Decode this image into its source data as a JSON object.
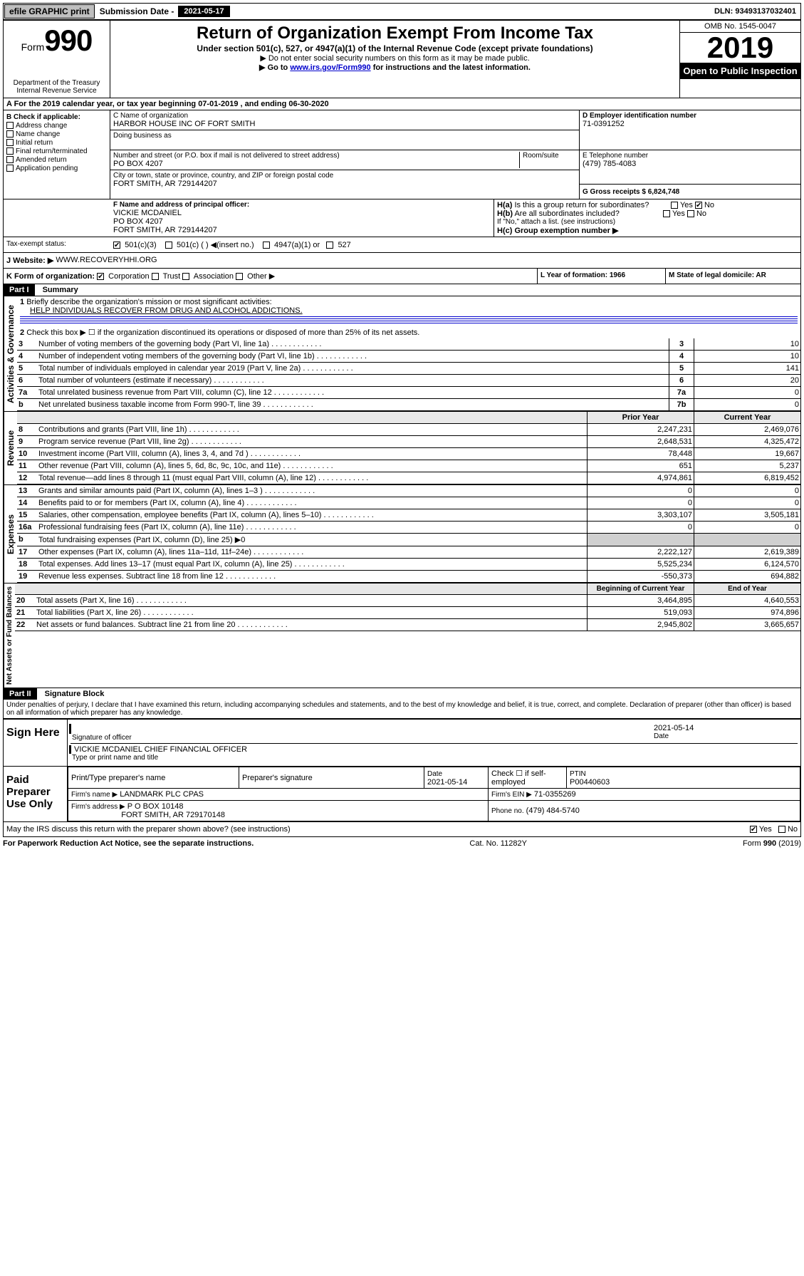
{
  "topbar": {
    "efile": "efile GRAPHIC print",
    "sub_label": "Submission Date - 2021-05-17",
    "dln": "DLN: 93493137032401"
  },
  "header": {
    "form_prefix": "Form",
    "form_num": "990",
    "dept": "Department of the Treasury",
    "irs": "Internal Revenue Service",
    "title": "Return of Organization Exempt From Income Tax",
    "sub1": "Under section 501(c), 527, or 4947(a)(1) of the Internal Revenue Code (except private foundations)",
    "sub2": "▶ Do not enter social security numbers on this form as it may be made public.",
    "sub3_pre": "▶ Go to ",
    "sub3_link": "www.irs.gov/Form990",
    "sub3_post": " for instructions and the latest information.",
    "omb": "OMB No. 1545-0047",
    "year": "2019",
    "open": "Open to Public Inspection"
  },
  "lineA": "A For the 2019 calendar year, or tax year beginning 07-01-2019   , and ending 06-30-2020",
  "sectionB": {
    "label": "B Check if applicable:",
    "items": [
      "Address change",
      "Name change",
      "Initial return",
      "Final return/terminated",
      "Amended return",
      "Application pending"
    ]
  },
  "sectionC": {
    "name_label": "C Name of organization",
    "name": "HARBOR HOUSE INC OF FORT SMITH",
    "dba_label": "Doing business as",
    "addr_label": "Number and street (or P.O. box if mail is not delivered to street address)",
    "room": "Room/suite",
    "addr": "PO BOX 4207",
    "city_label": "City or town, state or province, country, and ZIP or foreign postal code",
    "city": "FORT SMITH, AR  729144207"
  },
  "sectionD": {
    "label": "D Employer identification number",
    "val": "71-0391252"
  },
  "sectionE": {
    "label": "E Telephone number",
    "val": "(479) 785-4083"
  },
  "sectionG": {
    "label": "G Gross receipts $ 6,824,748"
  },
  "sectionF": {
    "label": "F Name and address of principal officer:",
    "name": "VICKIE MCDANIEL",
    "addr1": "PO BOX 4207",
    "addr2": "FORT SMITH, AR  729144207"
  },
  "sectionH": {
    "ha": "H(a)  Is this a group return for subordinates?",
    "hb": "H(b)  Are all subordinates included?",
    "hb_note": "If \"No,\" attach a list. (see instructions)",
    "hc": "H(c)  Group exemption number ▶"
  },
  "taxExempt": {
    "label": "Tax-exempt status:",
    "opt1": "501(c)(3)",
    "opt2": "501(c) (  ) ◀(insert no.)",
    "opt3": "4947(a)(1) or",
    "opt4": "527"
  },
  "sectionJ": {
    "label": "J   Website: ▶",
    "val": "WWW.RECOVERYHHI.ORG"
  },
  "sectionK": {
    "label": "K Form of organization:",
    "opts": [
      "Corporation",
      "Trust",
      "Association",
      "Other ▶"
    ]
  },
  "sectionL": {
    "label": "L Year of formation: 1966"
  },
  "sectionM": {
    "label": "M State of legal domicile: AR"
  },
  "part1": {
    "label": "Part I",
    "title": "Summary"
  },
  "governance_label": "Activities & Governance",
  "revenue_label": "Revenue",
  "expenses_label": "Expenses",
  "netassets_label": "Net Assets or Fund Balances",
  "line1": {
    "num": "1",
    "text": "Briefly describe the organization's mission or most significant activities:",
    "val": "HELP INDIVIDUALS RECOVER FROM DRUG AND ALCOHOL ADDICTIONS."
  },
  "line2": {
    "num": "2",
    "text": "Check this box ▶ ☐  if the organization discontinued its operations or disposed of more than 25% of its net assets."
  },
  "summary_lines": [
    {
      "num": "3",
      "text": "Number of voting members of the governing body (Part VI, line 1a)",
      "box": "3",
      "val": "10"
    },
    {
      "num": "4",
      "text": "Number of independent voting members of the governing body (Part VI, line 1b)",
      "box": "4",
      "val": "10"
    },
    {
      "num": "5",
      "text": "Total number of individuals employed in calendar year 2019 (Part V, line 2a)",
      "box": "5",
      "val": "141"
    },
    {
      "num": "6",
      "text": "Total number of volunteers (estimate if necessary)",
      "box": "6",
      "val": "20"
    },
    {
      "num": "7a",
      "text": "Total unrelated business revenue from Part VIII, column (C), line 12",
      "box": "7a",
      "val": "0"
    },
    {
      "num": "b",
      "text": "Net unrelated business taxable income from Form 990-T, line 39",
      "box": "7b",
      "val": "0"
    }
  ],
  "col_headers": {
    "prior": "Prior Year",
    "current": "Current Year"
  },
  "revenue_lines": [
    {
      "num": "8",
      "text": "Contributions and grants (Part VIII, line 1h)",
      "p": "2,247,231",
      "c": "2,469,076"
    },
    {
      "num": "9",
      "text": "Program service revenue (Part VIII, line 2g)",
      "p": "2,648,531",
      "c": "4,325,472"
    },
    {
      "num": "10",
      "text": "Investment income (Part VIII, column (A), lines 3, 4, and 7d )",
      "p": "78,448",
      "c": "19,667"
    },
    {
      "num": "11",
      "text": "Other revenue (Part VIII, column (A), lines 5, 6d, 8c, 9c, 10c, and 11e)",
      "p": "651",
      "c": "5,237"
    },
    {
      "num": "12",
      "text": "Total revenue—add lines 8 through 11 (must equal Part VIII, column (A), line 12)",
      "p": "4,974,861",
      "c": "6,819,452"
    }
  ],
  "expense_lines": [
    {
      "num": "13",
      "text": "Grants and similar amounts paid (Part IX, column (A), lines 1–3 )",
      "p": "0",
      "c": "0"
    },
    {
      "num": "14",
      "text": "Benefits paid to or for members (Part IX, column (A), line 4)",
      "p": "0",
      "c": "0"
    },
    {
      "num": "15",
      "text": "Salaries, other compensation, employee benefits (Part IX, column (A), lines 5–10)",
      "p": "3,303,107",
      "c": "3,505,181"
    },
    {
      "num": "16a",
      "text": "Professional fundraising fees (Part IX, column (A), line 11e)",
      "p": "0",
      "c": "0"
    },
    {
      "num": "b",
      "text": "Total fundraising expenses (Part IX, column (D), line 25) ▶0",
      "p": "",
      "c": "",
      "grey": true
    },
    {
      "num": "17",
      "text": "Other expenses (Part IX, column (A), lines 11a–11d, 11f–24e)",
      "p": "2,222,127",
      "c": "2,619,389"
    },
    {
      "num": "18",
      "text": "Total expenses. Add lines 13–17 (must equal Part IX, column (A), line 25)",
      "p": "5,525,234",
      "c": "6,124,570"
    },
    {
      "num": "19",
      "text": "Revenue less expenses. Subtract line 18 from line 12",
      "p": "-550,373",
      "c": "694,882"
    }
  ],
  "net_headers": {
    "begin": "Beginning of Current Year",
    "end": "End of Year"
  },
  "net_lines": [
    {
      "num": "20",
      "text": "Total assets (Part X, line 16)",
      "p": "3,464,895",
      "c": "4,640,553"
    },
    {
      "num": "21",
      "text": "Total liabilities (Part X, line 26)",
      "p": "519,093",
      "c": "974,896"
    },
    {
      "num": "22",
      "text": "Net assets or fund balances. Subtract line 21 from line 20",
      "p": "2,945,802",
      "c": "3,665,657"
    }
  ],
  "part2": {
    "label": "Part II",
    "title": "Signature Block"
  },
  "perjury": "Under penalties of perjury, I declare that I have examined this return, including accompanying schedules and statements, and to the best of my knowledge and belief, it is true, correct, and complete. Declaration of preparer (other than officer) is based on all information of which preparer has any knowledge.",
  "sign": {
    "here": "Sign Here",
    "date": "2021-05-14",
    "sig_label": "Signature of officer",
    "date_label": "Date",
    "name": "VICKIE MCDANIEL CHIEF FINANCIAL OFFICER",
    "name_label": "Type or print name and title"
  },
  "preparer": {
    "label": "Paid Preparer Use Only",
    "h1": "Print/Type preparer's name",
    "h2": "Preparer's signature",
    "h3": "Date",
    "h4": "Check ☐ if self-employed",
    "h5": "PTIN",
    "date": "2021-05-14",
    "ptin": "P00440603",
    "firm_label": "Firm's name   ▶",
    "firm": "LANDMARK PLC CPAS",
    "ein_label": "Firm's EIN ▶",
    "ein": "71-0355269",
    "addr_label": "Firm's address ▶",
    "addr1": "P O BOX 10148",
    "addr2": "FORT SMITH, AR  729170148",
    "phone_label": "Phone no.",
    "phone": "(479) 484-5740"
  },
  "discuss": "May the IRS discuss this return with the preparer shown above? (see instructions)",
  "footer": {
    "pra": "For Paperwork Reduction Act Notice, see the separate instructions.",
    "cat": "Cat. No. 11282Y",
    "form": "Form 990 (2019)"
  }
}
